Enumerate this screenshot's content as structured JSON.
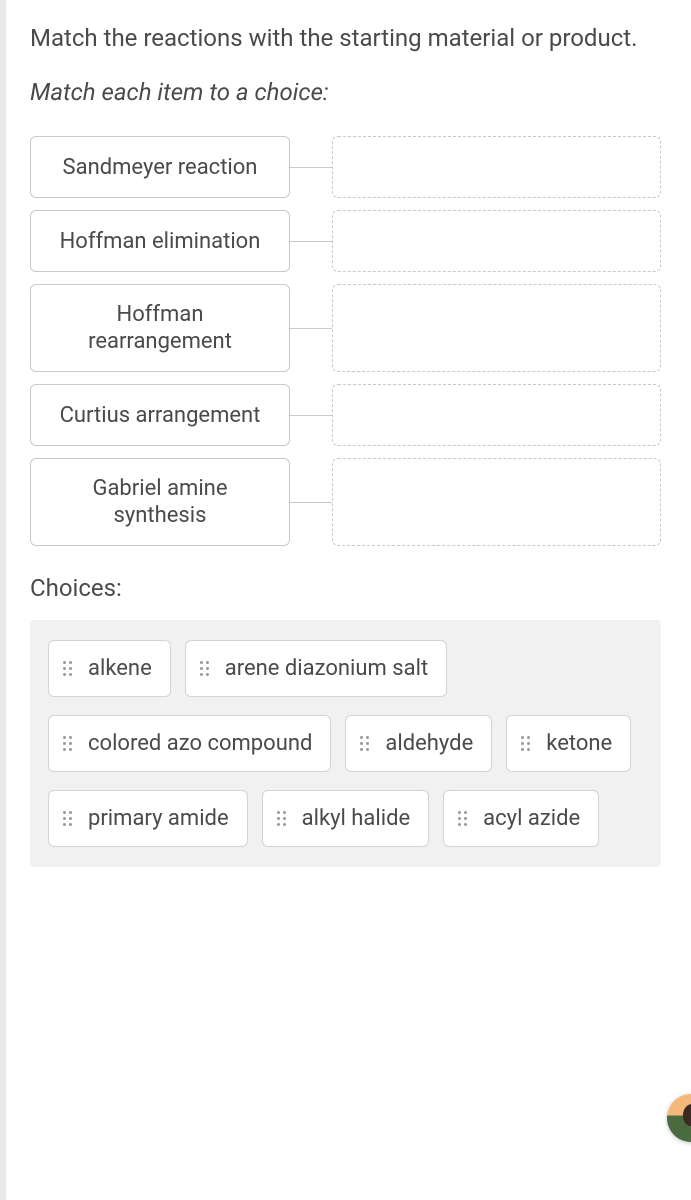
{
  "question": "Match the reactions with the starting material or product.",
  "instruction": "Match each item to a choice:",
  "items": [
    {
      "label": "Sandmeyer reaction",
      "tall": false
    },
    {
      "label": "Hoffman elimination",
      "tall": false
    },
    {
      "label": "Hoffman rearrangement",
      "tall": true
    },
    {
      "label": "Curtius arrangement",
      "tall": false
    },
    {
      "label": "Gabriel amine synthesis",
      "tall": true
    }
  ],
  "choices_label": "Choices:",
  "choices": [
    "alkene",
    "arene diazonium salt",
    "colored azo compound",
    "aldehyde",
    "ketone",
    "primary amide",
    "alkyl halide",
    "acyl azide"
  ],
  "colors": {
    "text": "#4a4a4a",
    "border": "#c9c9c9",
    "panel_bg": "#f1f1f1",
    "chip_border": "#d4d4d4",
    "grip_dot": "#9a9a9a"
  }
}
